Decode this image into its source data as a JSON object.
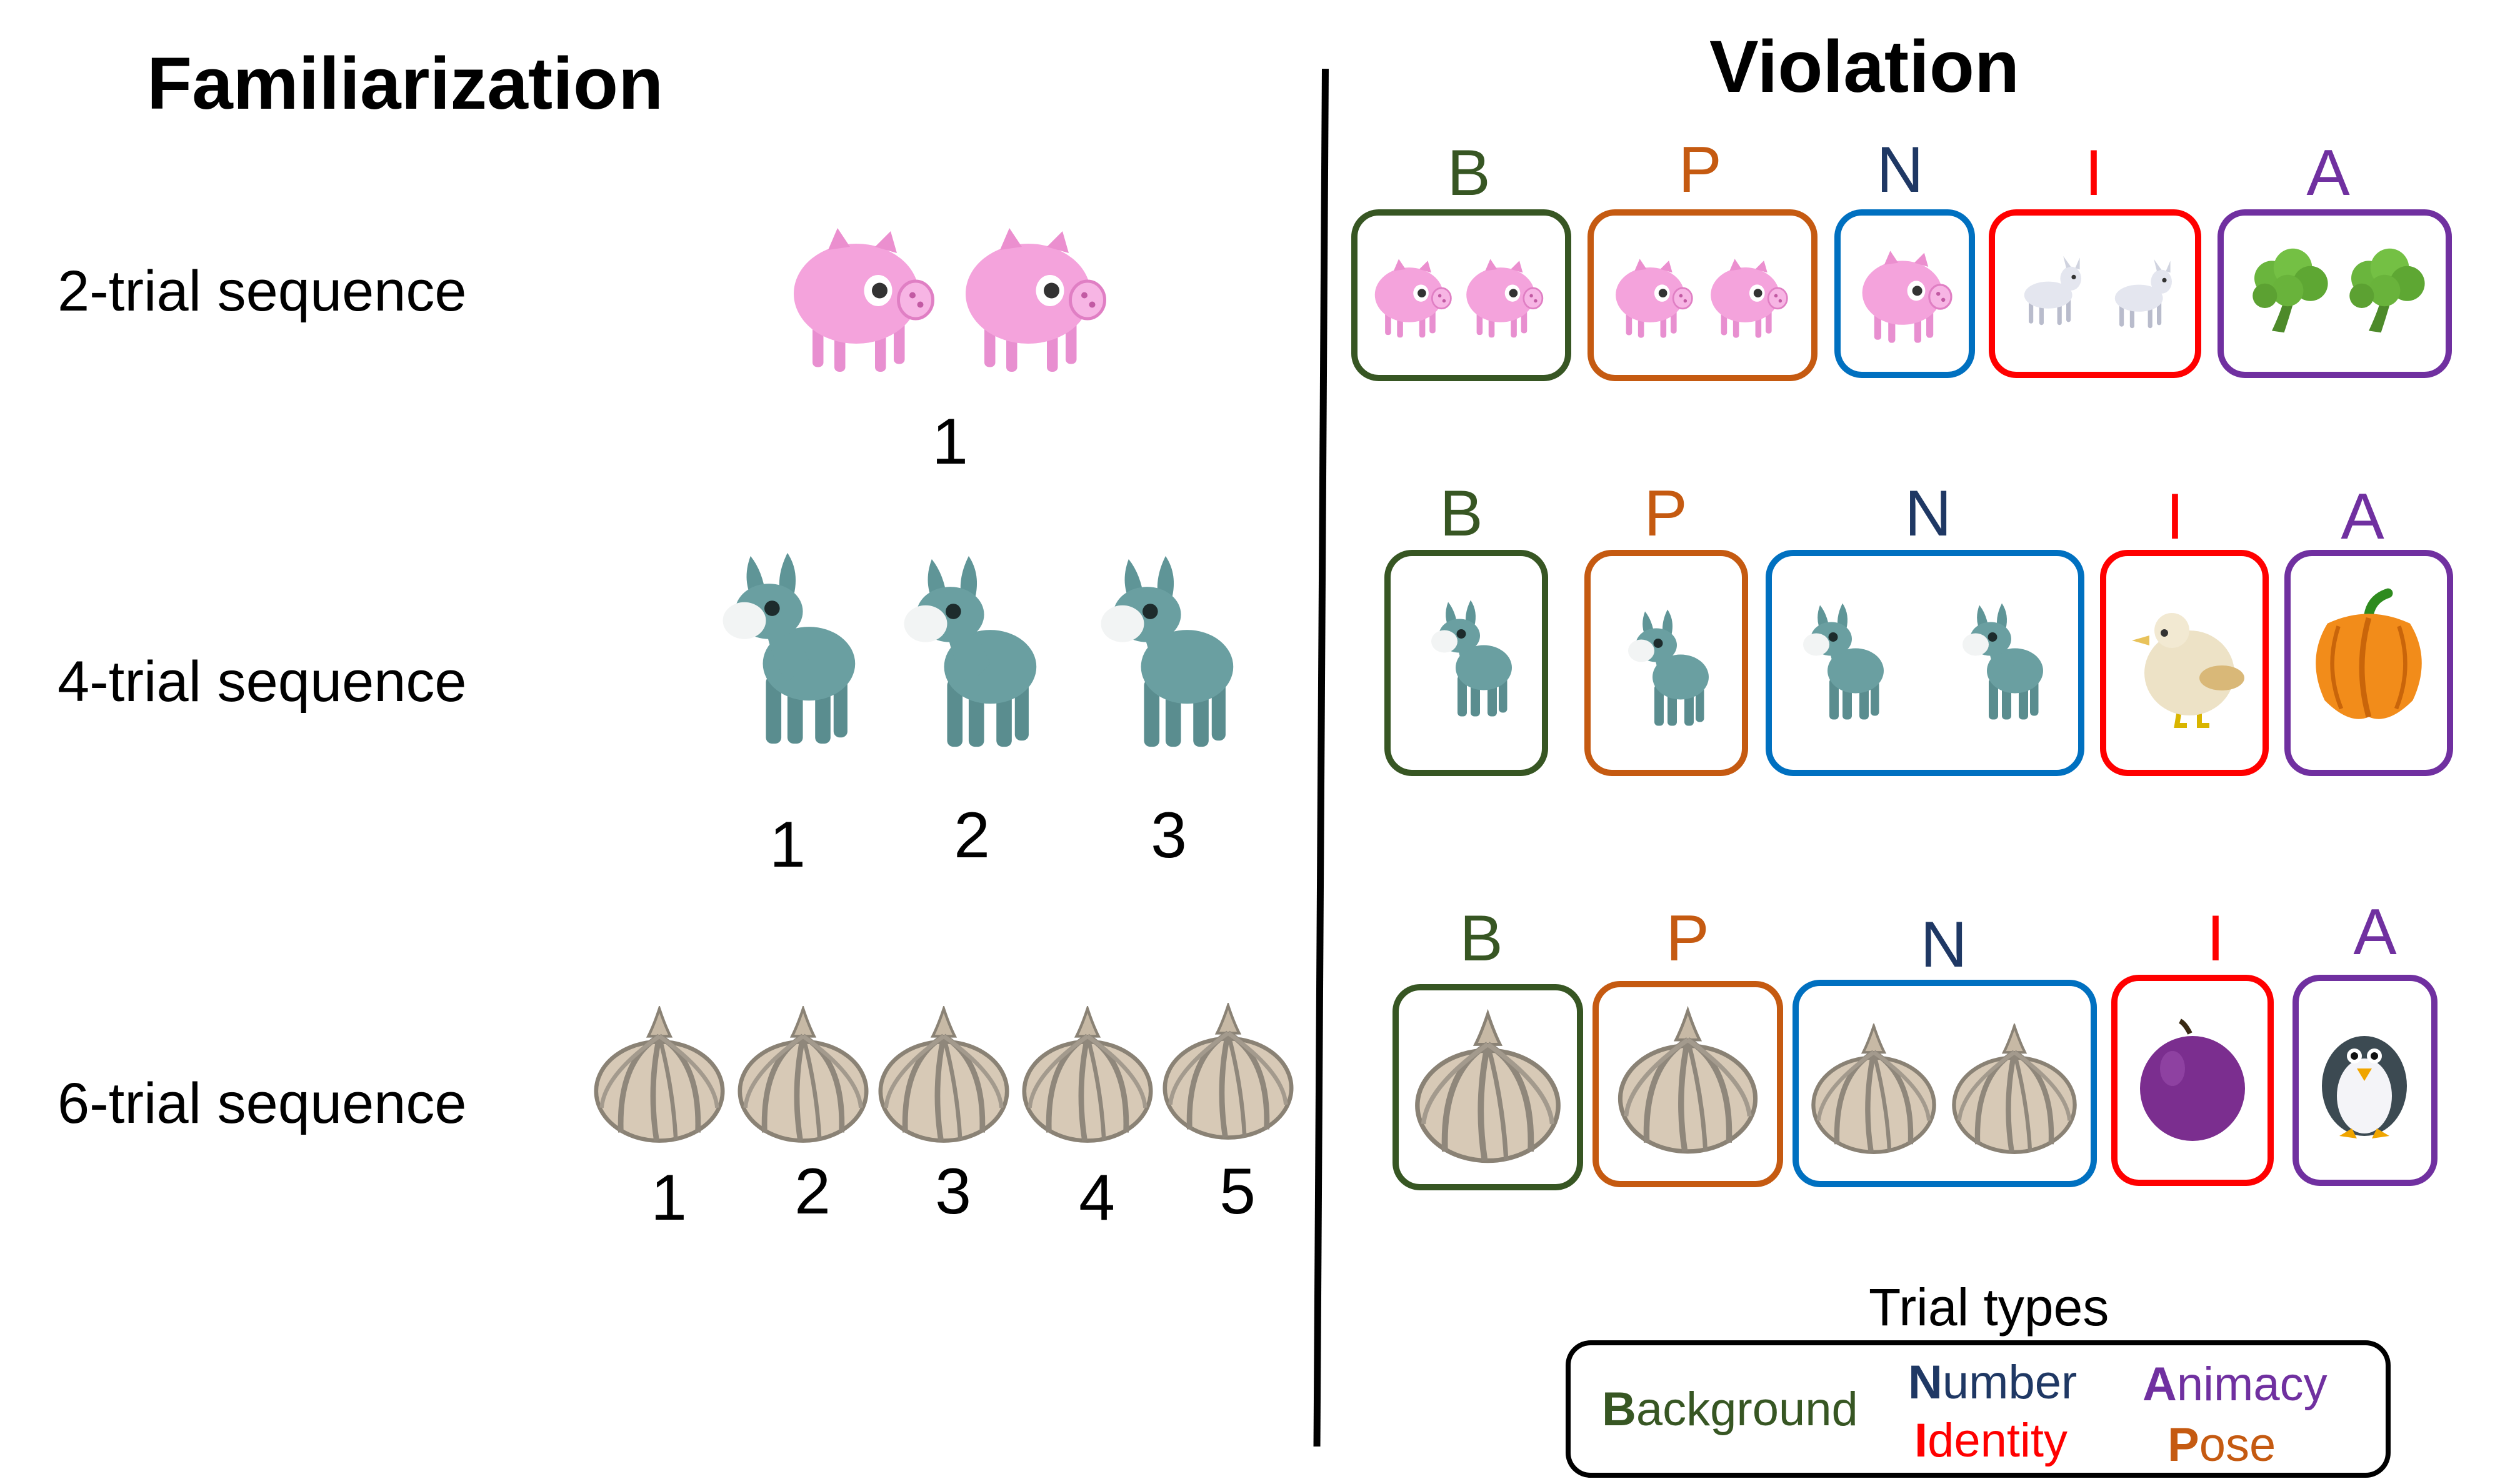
{
  "familiarization": {
    "title": "Familiarization",
    "rows": [
      {
        "label": "2-trial sequence",
        "numbers": [
          "1"
        ]
      },
      {
        "label": "4-trial sequence",
        "numbers": [
          "1",
          "2",
          "3"
        ]
      },
      {
        "label": "6-trial sequence",
        "numbers": [
          "1",
          "2",
          "3",
          "4",
          "5"
        ]
      }
    ]
  },
  "violation": {
    "title": "Violation",
    "rows": [
      {
        "labels": [
          "B",
          "P",
          "N",
          "I",
          "A"
        ],
        "objects": [
          "pig-icon",
          "pig-icon",
          "pig-icon",
          "goat-icon",
          "broccoli-icon"
        ]
      },
      {
        "labels": [
          "B",
          "P",
          "N",
          "I",
          "A"
        ],
        "objects": [
          "donkey-icon",
          "donkey-icon",
          "donkey-icon",
          "chick-icon",
          "pepper-icon"
        ]
      },
      {
        "labels": [
          "B",
          "P",
          "N",
          "I",
          "A"
        ],
        "objects": [
          "garlic-icon",
          "garlic-icon",
          "garlic-icon",
          "plum-icon",
          "penguin-icon"
        ]
      }
    ]
  },
  "legend": {
    "title": "Trial types",
    "items": [
      {
        "key": "background",
        "initial": "B",
        "rest": "ackground"
      },
      {
        "key": "number",
        "initial": "N",
        "rest": "umber"
      },
      {
        "key": "identity",
        "initial": "I",
        "rest": "dentity"
      },
      {
        "key": "animacy",
        "initial": "A",
        "rest": "nimacy"
      },
      {
        "key": "pose",
        "initial": "P",
        "rest": "ose"
      }
    ]
  },
  "colors": {
    "background": "#375623",
    "pose": "#c55a11",
    "number_box": "#0070c0",
    "number_text": "#1f3864",
    "identity": "#ff0000",
    "animacy": "#7030a0",
    "pig": "#f4a3dc",
    "donkey": "#5f9597",
    "garlic": "#d7c9b6"
  }
}
